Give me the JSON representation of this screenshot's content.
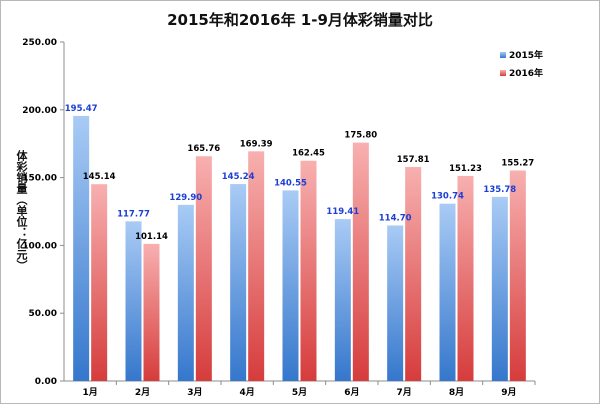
{
  "chart_data": {
    "type": "bar",
    "title": "2015年和2016年 1-9月体彩销量对比",
    "ylabel": "体彩销量（单位：亿元）",
    "xlabel": "",
    "categories": [
      "1月",
      "2月",
      "3月",
      "4月",
      "5月",
      "6月",
      "7月",
      "8月",
      "9月"
    ],
    "series": [
      {
        "name": "2015年",
        "values": [
          195.47,
          117.77,
          129.9,
          145.24,
          140.55,
          119.41,
          114.7,
          130.74,
          135.78
        ],
        "labels": [
          "195.47",
          "117.77",
          "129.90",
          "145.24",
          "140.55",
          "119.41",
          "114.70",
          "130.74",
          "135.78"
        ]
      },
      {
        "name": "2016年",
        "values": [
          145.14,
          101.14,
          165.76,
          169.39,
          162.45,
          175.8,
          157.81,
          151.23,
          155.27
        ],
        "labels": [
          "145.14",
          "101.14",
          "165.76",
          "169.39",
          "162.45",
          "175.80",
          "157.81",
          "151.23",
          "155.27"
        ]
      }
    ],
    "ylim": [
      0,
      250
    ],
    "yticks": [
      "0.00",
      "50.00",
      "100.00",
      "150.00",
      "200.00",
      "250.00"
    ],
    "grid": false,
    "legend_position": "top-right",
    "colors": {
      "s2015_light": "#9cc3f2",
      "s2015_dark": "#3f7fd0",
      "s2016_light": "#f7a3a3",
      "s2016_dark": "#d84444",
      "label_2015": "#1a3fd6",
      "label_2016": "#000000"
    }
  }
}
